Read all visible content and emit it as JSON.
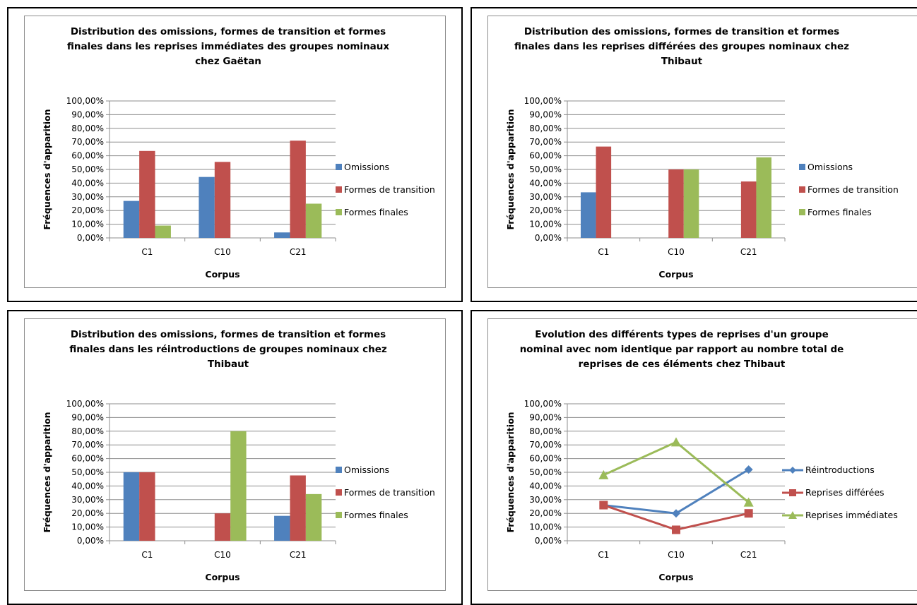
{
  "chart_data": [
    {
      "type": "bar",
      "title_lines": [
        "Distribution des omissions, formes de transition et formes",
        "finales dans les reprises immédiates des groupes nominaux",
        "chez Gaëtan"
      ],
      "xlabel": "Corpus",
      "ylabel": "Fréquences d'apparition",
      "ylim": [
        0,
        100
      ],
      "yticks": [
        "0,00%",
        "10,00%",
        "20,00%",
        "30,00%",
        "40,00%",
        "50,00%",
        "60,00%",
        "70,00%",
        "80,00%",
        "90,00%",
        "100,00%"
      ],
      "categories": [
        "C1",
        "C10",
        "C21"
      ],
      "series": [
        {
          "name": "Omissions",
          "color": "#4f81bd",
          "values": [
            27,
            44.5,
            4
          ]
        },
        {
          "name": "Formes de transition",
          "color": "#c0504d",
          "values": [
            63.5,
            55.5,
            71
          ]
        },
        {
          "name": "Formes finales",
          "color": "#9bbb59",
          "values": [
            9,
            0,
            25
          ]
        }
      ],
      "grid": true,
      "legend": "right"
    },
    {
      "type": "bar",
      "title_lines": [
        "Distribution des omissions, formes de transition et formes",
        "finales dans les reprises différées des groupes nominaux chez",
        "Thibaut"
      ],
      "xlabel": "Corpus",
      "ylabel": "Fréquences d'apparition",
      "ylim": [
        0,
        100
      ],
      "yticks": [
        "0,00%",
        "10,00%",
        "20,00%",
        "30,00%",
        "40,00%",
        "50,00%",
        "60,00%",
        "70,00%",
        "80,00%",
        "90,00%",
        "100,00%"
      ],
      "categories": [
        "C1",
        "C10",
        "C21"
      ],
      "series": [
        {
          "name": "Omissions",
          "color": "#4f81bd",
          "values": [
            33.3,
            0,
            0
          ]
        },
        {
          "name": "Formes de transition",
          "color": "#c0504d",
          "values": [
            66.7,
            50,
            41.2
          ]
        },
        {
          "name": "Formes finales",
          "color": "#9bbb59",
          "values": [
            0,
            50,
            58.8
          ]
        }
      ],
      "grid": true,
      "legend": "right"
    },
    {
      "type": "bar",
      "title_lines": [
        "Distribution des omissions, formes de transition et formes",
        "finales dans les réintroductions de groupes nominaux chez",
        "Thibaut"
      ],
      "xlabel": "Corpus",
      "ylabel": "Fréquences d'apparition",
      "ylim": [
        0,
        100
      ],
      "yticks": [
        "0,00%",
        "10,00%",
        "20,00%",
        "30,00%",
        "40,00%",
        "50,00%",
        "60,00%",
        "70,00%",
        "80,00%",
        "90,00%",
        "100,00%"
      ],
      "categories": [
        "C1",
        "C10",
        "C21"
      ],
      "series": [
        {
          "name": "Omissions",
          "color": "#4f81bd",
          "values": [
            50,
            0,
            18.2
          ]
        },
        {
          "name": "Formes de transition",
          "color": "#c0504d",
          "values": [
            50,
            20,
            47.7
          ]
        },
        {
          "name": "Formes finales",
          "color": "#9bbb59",
          "values": [
            0,
            80,
            34.1
          ]
        }
      ],
      "grid": true,
      "legend": "right"
    },
    {
      "type": "line",
      "title_lines": [
        "Evolution des différents types de reprises d'un groupe",
        "nominal avec nom identique par rapport au nombre total de",
        "reprises de ces éléments chez Thibaut"
      ],
      "xlabel": "Corpus",
      "ylabel": "Fréquences d'apparition",
      "ylim": [
        0,
        100
      ],
      "yticks": [
        "0,00%",
        "10,00%",
        "20,00%",
        "30,00%",
        "40,00%",
        "50,00%",
        "60,00%",
        "70,00%",
        "80,00%",
        "90,00%",
        "100,00%"
      ],
      "categories": [
        "C1",
        "C10",
        "C21"
      ],
      "series": [
        {
          "name": "Réintroductions",
          "color": "#4f81bd",
          "marker": "diamond",
          "values": [
            26,
            20,
            52
          ]
        },
        {
          "name": "Reprises différées",
          "color": "#c0504d",
          "marker": "square",
          "values": [
            26,
            8,
            20
          ]
        },
        {
          "name": "Reprises immédiates",
          "color": "#9bbb59",
          "marker": "triangle",
          "values": [
            48,
            72,
            28
          ]
        }
      ],
      "grid": true,
      "legend": "right"
    }
  ]
}
